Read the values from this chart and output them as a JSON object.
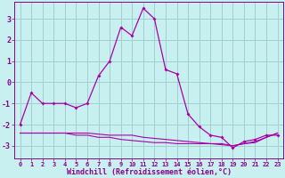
{
  "xlabel": "Windchill (Refroidissement éolien,°C)",
  "background_color": "#c8f0f0",
  "grid_color": "#a0d0d0",
  "line_color": "#aa00aa",
  "ylim": [
    -3.6,
    3.8
  ],
  "xlim": [
    -0.5,
    23.5
  ],
  "x_main": [
    0,
    1,
    2,
    3,
    4,
    5,
    6,
    7,
    8,
    9,
    10,
    11,
    12,
    13,
    14,
    15,
    16,
    17,
    18,
    19,
    20,
    21,
    22,
    23
  ],
  "y_main": [
    -2.0,
    -0.5,
    -1.0,
    -1.0,
    -1.0,
    -1.2,
    -1.0,
    0.3,
    1.0,
    2.6,
    2.2,
    3.5,
    3.0,
    0.6,
    0.4,
    -1.5,
    -2.1,
    -2.5,
    -2.6,
    -3.1,
    -2.8,
    -2.7,
    -2.5,
    -2.5
  ],
  "y_flat1": [
    -2.4,
    -2.4,
    -2.4,
    -2.4,
    -2.4,
    -2.5,
    -2.5,
    -2.6,
    -2.6,
    -2.7,
    -2.75,
    -2.8,
    -2.85,
    -2.85,
    -2.9,
    -2.9,
    -2.9,
    -2.9,
    -2.9,
    -3.0,
    -2.9,
    -2.85,
    -2.6,
    -2.4
  ],
  "y_flat2": [
    -2.4,
    -2.4,
    -2.4,
    -2.4,
    -2.4,
    -2.4,
    -2.4,
    -2.45,
    -2.5,
    -2.5,
    -2.5,
    -2.6,
    -2.65,
    -2.7,
    -2.75,
    -2.8,
    -2.85,
    -2.9,
    -2.95,
    -3.0,
    -2.9,
    -2.8,
    -2.6,
    -2.4
  ],
  "yticks": [
    -3,
    -2,
    -1,
    0,
    1,
    2,
    3
  ],
  "xticks": [
    0,
    1,
    2,
    3,
    4,
    5,
    6,
    7,
    8,
    9,
    10,
    11,
    12,
    13,
    14,
    15,
    16,
    17,
    18,
    19,
    20,
    21,
    22,
    23
  ]
}
